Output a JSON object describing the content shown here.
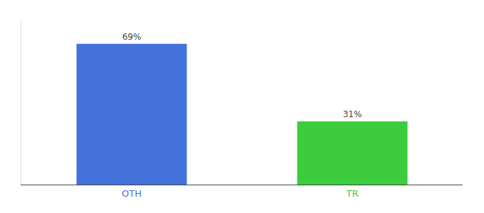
{
  "chart_data": {
    "type": "bar",
    "categories": [
      "OTH",
      "TR"
    ],
    "values": [
      69,
      31
    ],
    "value_labels": [
      "69%",
      "31%"
    ],
    "colors": [
      "#4472db",
      "#3dcc3d"
    ],
    "ylim": [
      0,
      80
    ],
    "grid": false,
    "data_labels": true,
    "tick_labels": "x"
  }
}
